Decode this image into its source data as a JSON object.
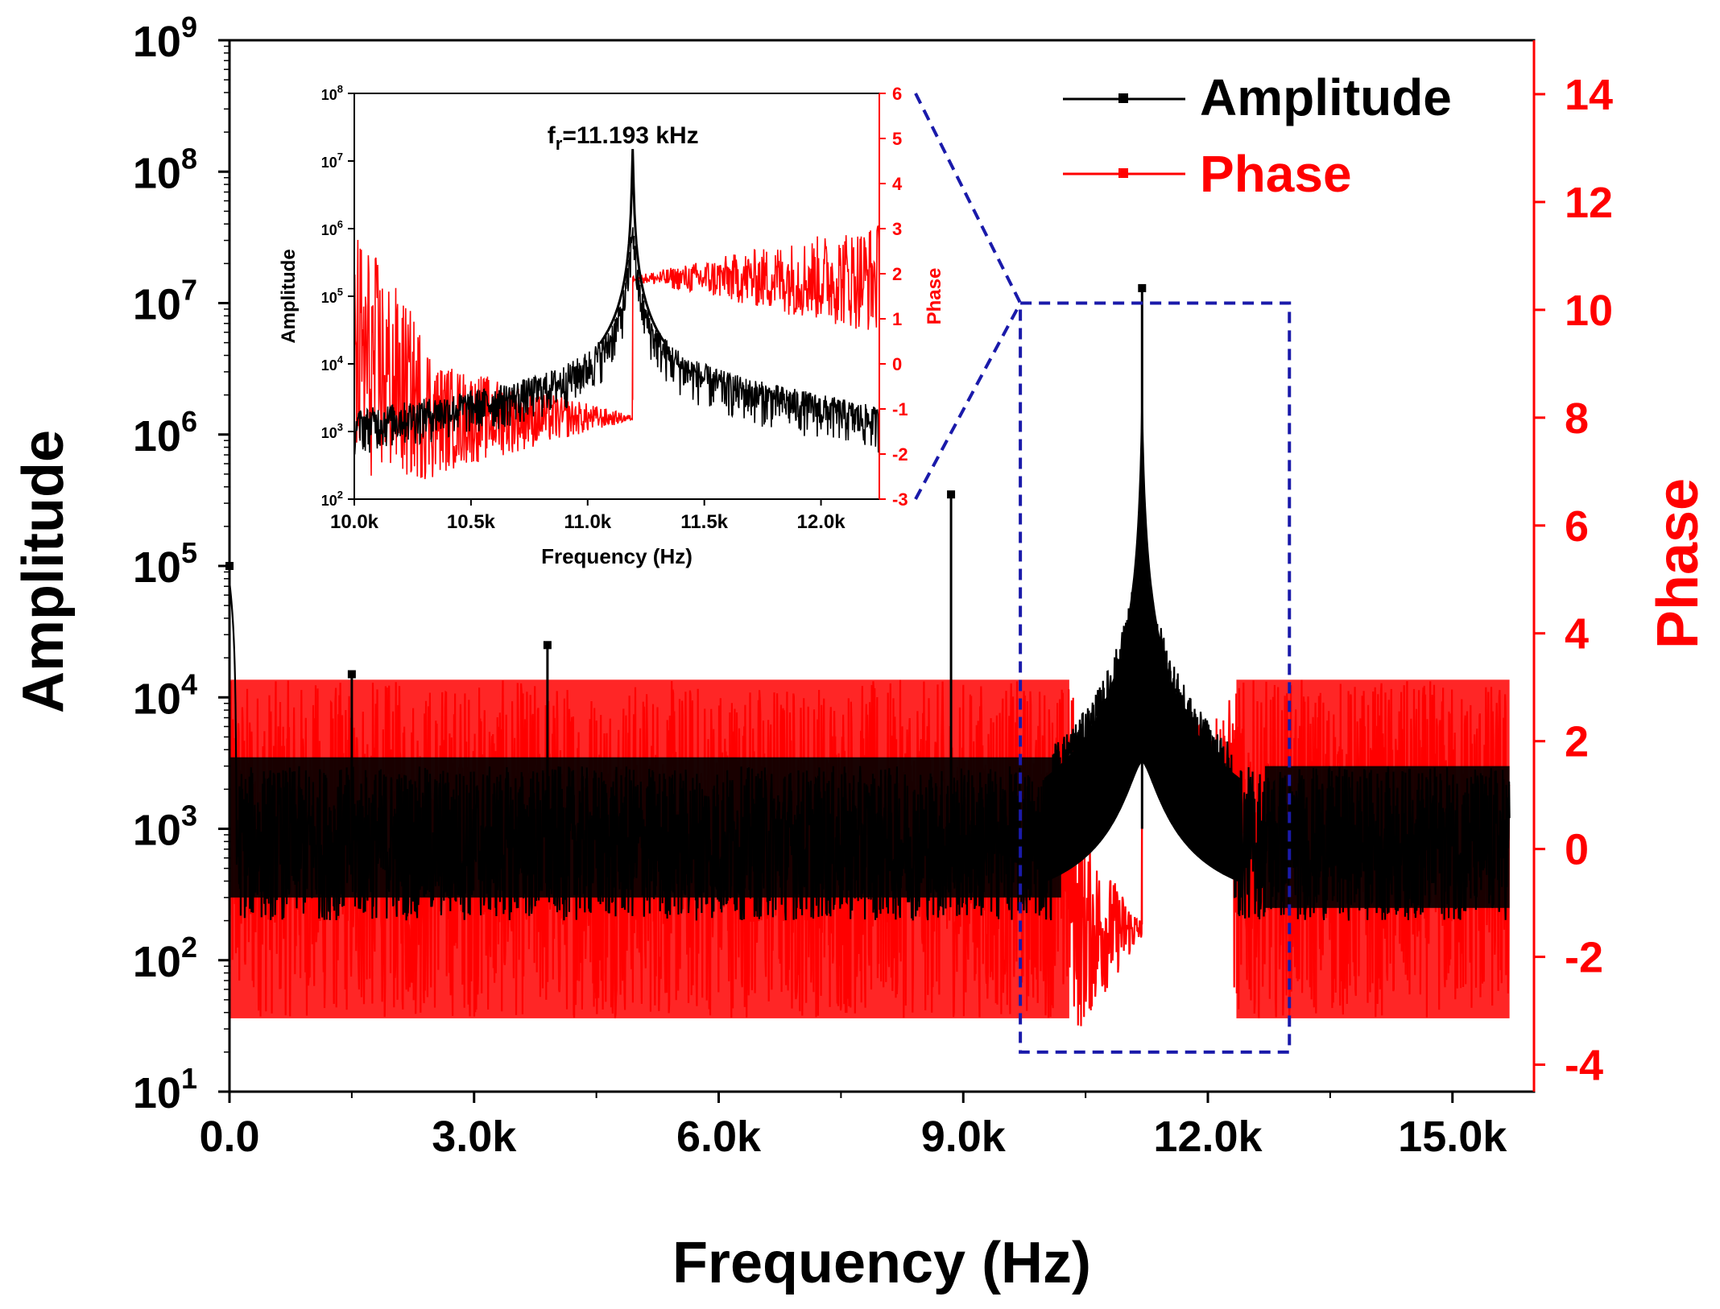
{
  "chart_data": [
    {
      "id": "main",
      "type": "line",
      "title": "",
      "xlabel": "Frequency (Hz)",
      "ylabel_left": "Amplitude",
      "ylabel_right": "Phase",
      "xlim": [
        0,
        16000
      ],
      "ylim_left_log10": [
        1,
        9
      ],
      "ylim_right": [
        -4.5,
        15
      ],
      "xticks": [
        0,
        3000,
        6000,
        9000,
        12000,
        15000
      ],
      "xtick_labels": [
        "0.0",
        "3.0k",
        "6.0k",
        "9.0k",
        "12.0k",
        "15.0k"
      ],
      "yticks_left_exp": [
        1,
        2,
        3,
        4,
        5,
        6,
        7,
        8,
        9
      ],
      "yticks_left_base": "10",
      "yticks_right": [
        -4,
        -2,
        0,
        2,
        4,
        6,
        8,
        10,
        12,
        14
      ],
      "ytick_labels_right": [
        "-4",
        "-2",
        "0",
        "2",
        "4",
        "6",
        "8",
        "10",
        "12",
        "14"
      ],
      "legend": {
        "placement": "top-right",
        "entries": [
          {
            "label": "Amplitude",
            "color": "#000000"
          },
          {
            "label": "Phase",
            "color": "#ff0000"
          }
        ]
      },
      "series": [
        {
          "name": "Amplitude",
          "color": "#000000",
          "axis": "left",
          "scale": "log",
          "baseline_range": [
            200,
            3000
          ],
          "peaks": [
            {
              "x": 0,
              "y": 100000
            },
            {
              "x": 1500,
              "y": 15000
            },
            {
              "x": 3900,
              "y": 25000
            },
            {
              "x": 8850,
              "y": 350000
            },
            {
              "x": 11193,
              "y": 13000000
            }
          ],
          "resonance_frequency_hz": 11193
        },
        {
          "name": "Phase",
          "color": "#ff0000",
          "axis": "right",
          "noise_band": [
            -3.14,
            3.14
          ],
          "pre_resonance_level": -1.5,
          "post_resonance_level": 1.8,
          "resonance_x": 11193
        }
      ],
      "zoom_box": {
        "x_range": [
          9700,
          13000
        ],
        "amplitude_range": [
          20,
          10000000
        ],
        "color": "#1a1aaa",
        "style": "dashed"
      }
    },
    {
      "id": "inset",
      "type": "line",
      "title": "",
      "annotation_prefix": "f",
      "annotation_subscript": "r",
      "annotation_value": "=11.193 kHz",
      "xlabel": "Frequency (Hz)",
      "ylabel_left": "Amplitude",
      "ylabel_right": "Phase",
      "xlim": [
        10000,
        12250
      ],
      "ylim_left_log10": [
        2,
        8
      ],
      "ylim_right": [
        -3,
        6
      ],
      "xticks": [
        10000,
        10500,
        11000,
        11500,
        12000
      ],
      "xtick_labels": [
        "10.0k",
        "10.5k",
        "11.0k",
        "11.5k",
        "12.0k"
      ],
      "yticks_left_exp": [
        2,
        3,
        4,
        5,
        6,
        7,
        8
      ],
      "yticks_left_base": "10",
      "yticks_right": [
        -3,
        -2,
        -1,
        0,
        1,
        2,
        3,
        4,
        5,
        6
      ],
      "ytick_labels_right": [
        "-3",
        "-2",
        "-1",
        "0",
        "1",
        "2",
        "3",
        "4",
        "5",
        "6"
      ],
      "series": [
        {
          "name": "Amplitude",
          "color": "#000000",
          "scale": "log",
          "peak": {
            "x": 11193,
            "y": 15000000
          },
          "baseline_range": [
            300,
            3000
          ]
        },
        {
          "name": "Phase",
          "color": "#ff0000",
          "pre_resonance_level": -1,
          "post_resonance_level": 1.9
        }
      ]
    }
  ]
}
